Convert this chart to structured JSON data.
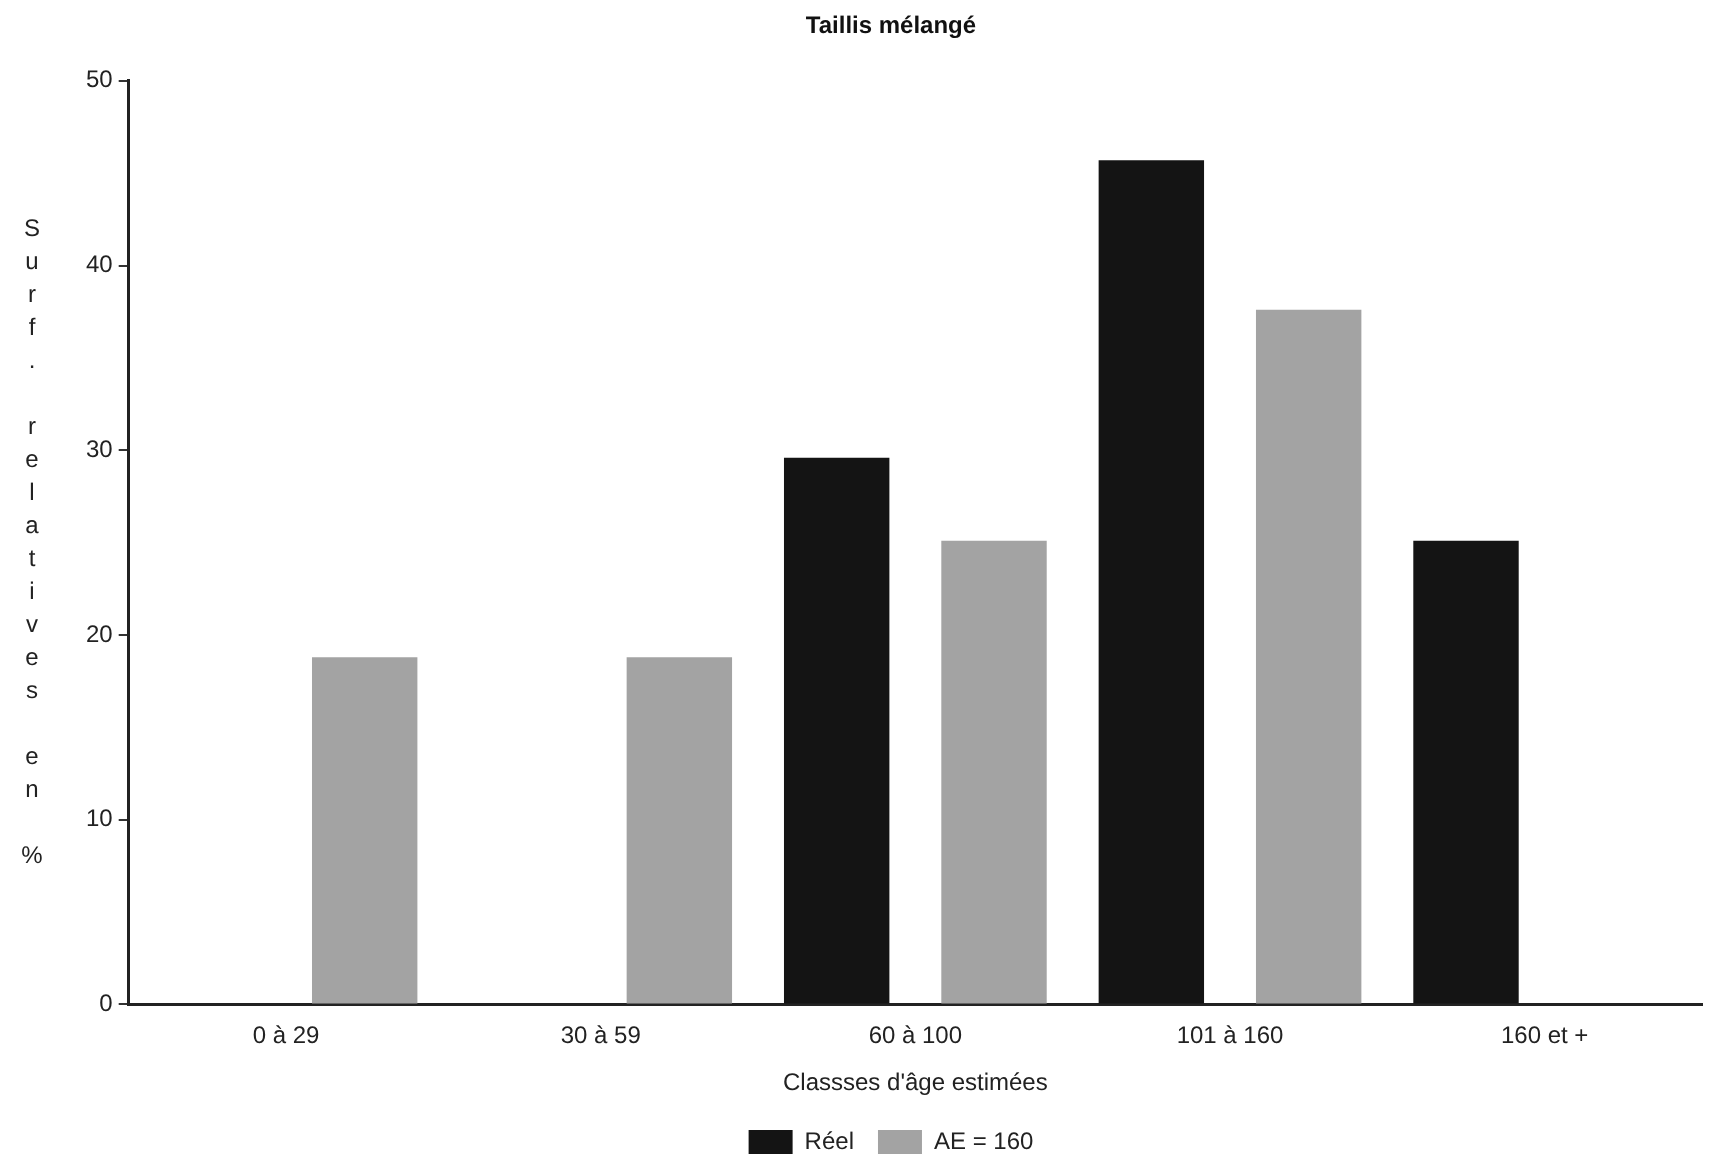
{
  "chart_data": {
    "type": "bar",
    "title": "Taillis mélangé",
    "xlabel": "Classses d'âge estimées",
    "ylabel": "Surf. relatives en %",
    "categories": [
      "0 à 29",
      "30 à 59",
      "60 à 100",
      "101 à 160",
      "160 et +"
    ],
    "series": [
      {
        "name": "Réel",
        "color": "#141414",
        "values": [
          0,
          0,
          29.6,
          45.7,
          25.1
        ]
      },
      {
        "name": "AE = 160",
        "color": "#a3a3a3",
        "values": [
          18.8,
          18.8,
          25.1,
          37.6,
          null
        ]
      }
    ],
    "ylim": [
      0,
      50
    ],
    "yticks": [
      0,
      10,
      20,
      30,
      40,
      50
    ],
    "grid": false,
    "legend": "bottom"
  }
}
